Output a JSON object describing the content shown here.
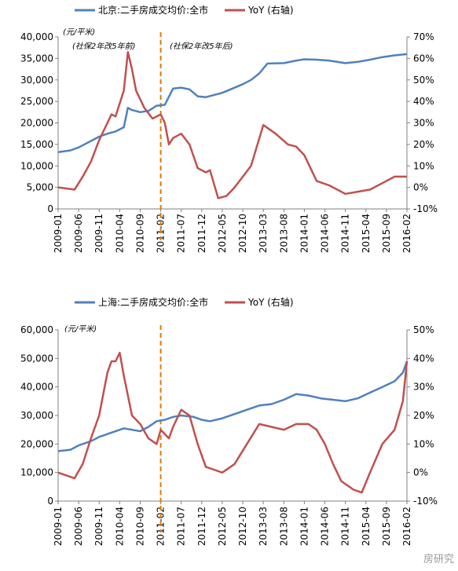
{
  "x_labels": [
    "2009-01",
    "2009-06",
    "2009-11",
    "2010-04",
    "2010-09",
    "2011-02",
    "2011-07",
    "2011-12",
    "2012-05",
    "2012-10",
    "2013-03",
    "2013-08",
    "2014-01",
    "2014-06",
    "2014-11",
    "2015-04",
    "2015-09",
    "2016-02"
  ],
  "colors": {
    "price": "#4f81bd",
    "yoy": "#c0504d",
    "dashed": "#e07b00"
  },
  "watermark": "房研究",
  "chart_data": [
    {
      "type": "line",
      "title": "",
      "legend": {
        "position": "top",
        "items": [
          "北京:二手房成交均价:全市",
          "YoY (右轴)"
        ]
      },
      "unit_label": "(元/平米)",
      "annotations": [
        "(社保2年改5年前)",
        "(社保2年改5年后)"
      ],
      "divider_x": "2011-02",
      "left_axis": {
        "ylim": [
          0,
          40000
        ],
        "ticks": [
          "0",
          "5,000",
          "10,000",
          "15,000",
          "20,000",
          "25,000",
          "30,000",
          "35,000",
          "40,000"
        ]
      },
      "right_axis": {
        "ylim": [
          -10,
          70
        ],
        "ticks": [
          "-10%",
          "0%",
          "10%",
          "20%",
          "30%",
          "40%",
          "50%",
          "60%",
          "70%"
        ]
      },
      "x_start": "2009-01",
      "x_end": "2016-02",
      "series": [
        {
          "name": "北京:二手房成交均价:全市",
          "axis": "left",
          "points": [
            [
              "2009-01",
              13200
            ],
            [
              "2009-04",
              13600
            ],
            [
              "2009-06",
              14300
            ],
            [
              "2009-09",
              15800
            ],
            [
              "2009-11",
              16800
            ],
            [
              "2010-01",
              17500
            ],
            [
              "2010-03",
              18000
            ],
            [
              "2010-05",
              19000
            ],
            [
              "2010-06",
              23500
            ],
            [
              "2010-07",
              23000
            ],
            [
              "2010-09",
              22500
            ],
            [
              "2010-11",
              22800
            ],
            [
              "2011-01",
              24000
            ],
            [
              "2011-03",
              24200
            ],
            [
              "2011-05",
              28000
            ],
            [
              "2011-07",
              28200
            ],
            [
              "2011-09",
              27800
            ],
            [
              "2011-11",
              26200
            ],
            [
              "2012-01",
              26000
            ],
            [
              "2012-03",
              26500
            ],
            [
              "2012-05",
              27000
            ],
            [
              "2012-07",
              27800
            ],
            [
              "2012-10",
              29000
            ],
            [
              "2012-12",
              30000
            ],
            [
              "2013-02",
              31500
            ],
            [
              "2013-04",
              33800
            ],
            [
              "2013-08",
              33900
            ],
            [
              "2013-11",
              34500
            ],
            [
              "2014-01",
              34800
            ],
            [
              "2014-04",
              34700
            ],
            [
              "2014-07",
              34500
            ],
            [
              "2014-11",
              33900
            ],
            [
              "2015-02",
              34200
            ],
            [
              "2015-05",
              34700
            ],
            [
              "2015-08",
              35300
            ],
            [
              "2015-11",
              35700
            ],
            [
              "2016-02",
              36000
            ]
          ]
        },
        {
          "name": "YoY (右轴)",
          "axis": "right",
          "points": [
            [
              "2009-01",
              0
            ],
            [
              "2009-03",
              -0.5
            ],
            [
              "2009-05",
              -1
            ],
            [
              "2009-07",
              5
            ],
            [
              "2009-09",
              12
            ],
            [
              "2009-11",
              22
            ],
            [
              "2010-01",
              30
            ],
            [
              "2010-02",
              34
            ],
            [
              "2010-03",
              33
            ],
            [
              "2010-05",
              45
            ],
            [
              "2010-06",
              63
            ],
            [
              "2010-07",
              55
            ],
            [
              "2010-08",
              45
            ],
            [
              "2010-10",
              37
            ],
            [
              "2010-12",
              32
            ],
            [
              "2011-02",
              34
            ],
            [
              "2011-03",
              30
            ],
            [
              "2011-04",
              20
            ],
            [
              "2011-05",
              23
            ],
            [
              "2011-07",
              25
            ],
            [
              "2011-09",
              20
            ],
            [
              "2011-11",
              9
            ],
            [
              "2012-01",
              7
            ],
            [
              "2012-02",
              8
            ],
            [
              "2012-04",
              -5
            ],
            [
              "2012-06",
              -4
            ],
            [
              "2012-08",
              0
            ],
            [
              "2012-10",
              5
            ],
            [
              "2012-12",
              10
            ],
            [
              "2013-03",
              29
            ],
            [
              "2013-06",
              25
            ],
            [
              "2013-09",
              20
            ],
            [
              "2013-11",
              19
            ],
            [
              "2014-01",
              15
            ],
            [
              "2014-04",
              3
            ],
            [
              "2014-07",
              1
            ],
            [
              "2014-11",
              -3
            ],
            [
              "2015-02",
              -2
            ],
            [
              "2015-05",
              -1
            ],
            [
              "2015-08",
              2
            ],
            [
              "2015-11",
              5
            ],
            [
              "2016-02",
              5
            ]
          ]
        }
      ]
    },
    {
      "type": "line",
      "title": "",
      "legend": {
        "position": "top",
        "items": [
          "上海:二手房成交均价:全市",
          "YoY (右轴)"
        ]
      },
      "unit_label": "(元/平米)",
      "divider_x": "2011-02",
      "left_axis": {
        "ylim": [
          0,
          60000
        ],
        "ticks": [
          "0",
          "10,000",
          "20,000",
          "30,000",
          "40,000",
          "50,000",
          "60,000"
        ]
      },
      "right_axis": {
        "ylim": [
          -10,
          50
        ],
        "ticks": [
          "-10%",
          "0%",
          "10%",
          "20%",
          "30%",
          "40%",
          "50%"
        ]
      },
      "x_start": "2009-01",
      "x_end": "2016-02",
      "series": [
        {
          "name": "上海:二手房成交均价:全市",
          "axis": "left",
          "points": [
            [
              "2009-01",
              17500
            ],
            [
              "2009-04",
              18000
            ],
            [
              "2009-06",
              19500
            ],
            [
              "2009-09",
              21000
            ],
            [
              "2009-11",
              22500
            ],
            [
              "2010-02",
              24000
            ],
            [
              "2010-05",
              25500
            ],
            [
              "2010-07",
              25000
            ],
            [
              "2010-09",
              24500
            ],
            [
              "2010-11",
              26000
            ],
            [
              "2011-01",
              28000
            ],
            [
              "2011-03",
              28500
            ],
            [
              "2011-05",
              29500
            ],
            [
              "2011-07",
              30000
            ],
            [
              "2011-10",
              29500
            ],
            [
              "2011-12",
              28500
            ],
            [
              "2012-02",
              28000
            ],
            [
              "2012-05",
              29000
            ],
            [
              "2012-08",
              30500
            ],
            [
              "2012-11",
              32000
            ],
            [
              "2013-02",
              33500
            ],
            [
              "2013-05",
              34000
            ],
            [
              "2013-08",
              35500
            ],
            [
              "2013-11",
              37500
            ],
            [
              "2014-02",
              37000
            ],
            [
              "2014-05",
              36000
            ],
            [
              "2014-08",
              35500
            ],
            [
              "2014-11",
              35000
            ],
            [
              "2015-02",
              36000
            ],
            [
              "2015-05",
              38000
            ],
            [
              "2015-08",
              40000
            ],
            [
              "2015-11",
              42000
            ],
            [
              "2016-01",
              45000
            ],
            [
              "2016-02",
              49000
            ]
          ]
        },
        {
          "name": "YoY (右轴)",
          "axis": "right",
          "points": [
            [
              "2009-01",
              0
            ],
            [
              "2009-03",
              -1
            ],
            [
              "2009-05",
              -2
            ],
            [
              "2009-07",
              3
            ],
            [
              "2009-09",
              12
            ],
            [
              "2009-11",
              20
            ],
            [
              "2010-01",
              35
            ],
            [
              "2010-02",
              39
            ],
            [
              "2010-03",
              39
            ],
            [
              "2010-04",
              42
            ],
            [
              "2010-05",
              34
            ],
            [
              "2010-07",
              20
            ],
            [
              "2010-09",
              17
            ],
            [
              "2010-11",
              12
            ],
            [
              "2011-01",
              10
            ],
            [
              "2011-02",
              15
            ],
            [
              "2011-04",
              12
            ],
            [
              "2011-05",
              16
            ],
            [
              "2011-07",
              22
            ],
            [
              "2011-09",
              20
            ],
            [
              "2011-11",
              10
            ],
            [
              "2012-01",
              2
            ],
            [
              "2012-03",
              1
            ],
            [
              "2012-05",
              0
            ],
            [
              "2012-08",
              3
            ],
            [
              "2012-11",
              10
            ],
            [
              "2013-02",
              17
            ],
            [
              "2013-05",
              16
            ],
            [
              "2013-08",
              15
            ],
            [
              "2013-11",
              17
            ],
            [
              "2014-02",
              17
            ],
            [
              "2014-04",
              15
            ],
            [
              "2014-06",
              10
            ],
            [
              "2014-08",
              3
            ],
            [
              "2014-10",
              -3
            ],
            [
              "2015-01",
              -6
            ],
            [
              "2015-03",
              -7
            ],
            [
              "2015-05",
              0
            ],
            [
              "2015-08",
              10
            ],
            [
              "2015-11",
              15
            ],
            [
              "2016-01",
              25
            ],
            [
              "2016-02",
              39
            ]
          ]
        }
      ]
    }
  ]
}
